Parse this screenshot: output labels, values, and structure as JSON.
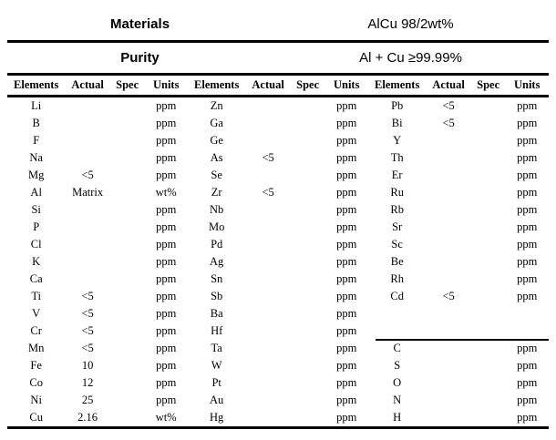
{
  "colors": {
    "background": "#ffffff",
    "text": "#000000",
    "rule": "#000000"
  },
  "title_rows": [
    {
      "label": "Materials",
      "value": "AlCu 98/2wt%"
    },
    {
      "label": "Purity",
      "value": "Al + Cu ≥99.99%"
    }
  ],
  "column_headers": [
    "Elements",
    "Actual",
    "Spec",
    "Units"
  ],
  "column_groups": [
    {
      "rows": [
        [
          "Li",
          "",
          "",
          "ppm"
        ],
        [
          "B",
          "",
          "",
          "ppm"
        ],
        [
          "F",
          "",
          "",
          "ppm"
        ],
        [
          "Na",
          "",
          "",
          "ppm"
        ],
        [
          "Mg",
          "<5",
          "",
          "ppm"
        ],
        [
          "Al",
          "Matrix",
          "",
          "wt%"
        ],
        [
          "Si",
          "",
          "",
          "ppm"
        ],
        [
          "P",
          "",
          "",
          "ppm"
        ],
        [
          "Cl",
          "",
          "",
          "ppm"
        ],
        [
          "K",
          "",
          "",
          "ppm"
        ],
        [
          "Ca",
          "",
          "",
          "ppm"
        ],
        [
          "Ti",
          "<5",
          "",
          "ppm"
        ],
        [
          "V",
          "<5",
          "",
          "ppm"
        ],
        [
          "Cr",
          "<5",
          "",
          "ppm"
        ],
        [
          "Mn",
          "<5",
          "",
          "ppm"
        ],
        [
          "Fe",
          "10",
          "",
          "ppm"
        ],
        [
          "Co",
          "12",
          "",
          "ppm"
        ],
        [
          "Ni",
          "25",
          "",
          "ppm"
        ],
        [
          "Cu",
          "2.16",
          "",
          "wt%"
        ]
      ]
    },
    {
      "rows": [
        [
          "Zn",
          "",
          "",
          "ppm"
        ],
        [
          "Ga",
          "",
          "",
          "ppm"
        ],
        [
          "Ge",
          "",
          "",
          "ppm"
        ],
        [
          "As",
          "<5",
          "",
          "ppm"
        ],
        [
          "Se",
          "",
          "",
          "ppm"
        ],
        [
          "Zr",
          "<5",
          "",
          "ppm"
        ],
        [
          "Nb",
          "",
          "",
          "ppm"
        ],
        [
          "Mo",
          "",
          "",
          "ppm"
        ],
        [
          "Pd",
          "",
          "",
          "ppm"
        ],
        [
          "Ag",
          "",
          "",
          "ppm"
        ],
        [
          "Sn",
          "",
          "",
          "ppm"
        ],
        [
          "Sb",
          "",
          "",
          "ppm"
        ],
        [
          "Ba",
          "",
          "",
          "ppm"
        ],
        [
          "Hf",
          "",
          "",
          "ppm"
        ],
        [
          "Ta",
          "",
          "",
          "ppm"
        ],
        [
          "W",
          "",
          "",
          "ppm"
        ],
        [
          "Pt",
          "",
          "",
          "ppm"
        ],
        [
          "Au",
          "",
          "",
          "ppm"
        ],
        [
          "Hg",
          "",
          "",
          "ppm"
        ]
      ]
    },
    {
      "divider_before_index": 14,
      "rows": [
        [
          "Pb",
          "<5",
          "",
          "ppm"
        ],
        [
          "Bi",
          "<5",
          "",
          "ppm"
        ],
        [
          "Y",
          "",
          "",
          "ppm"
        ],
        [
          "Th",
          "",
          "",
          "ppm"
        ],
        [
          "Er",
          "",
          "",
          "ppm"
        ],
        [
          "Ru",
          "",
          "",
          "ppm"
        ],
        [
          "Rb",
          "",
          "",
          "ppm"
        ],
        [
          "Sr",
          "",
          "",
          "ppm"
        ],
        [
          "Sc",
          "",
          "",
          "ppm"
        ],
        [
          "Be",
          "",
          "",
          "ppm"
        ],
        [
          "Rh",
          "",
          "",
          "ppm"
        ],
        [
          "Cd",
          "<5",
          "",
          "ppm"
        ],
        [
          "",
          "",
          "",
          ""
        ],
        [
          "",
          "",
          "",
          ""
        ],
        [
          "C",
          "",
          "",
          "ppm"
        ],
        [
          "S",
          "",
          "",
          "ppm"
        ],
        [
          "O",
          "",
          "",
          "ppm"
        ],
        [
          "N",
          "",
          "",
          "ppm"
        ],
        [
          "H",
          "",
          "",
          "ppm"
        ]
      ]
    }
  ]
}
